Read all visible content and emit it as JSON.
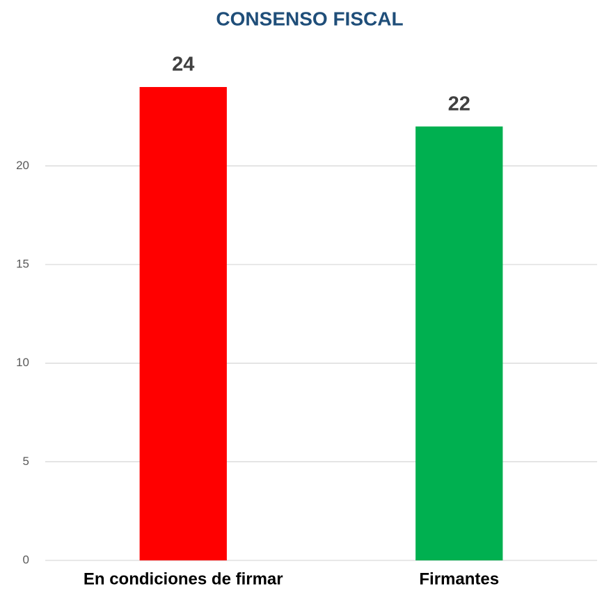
{
  "chart_data": {
    "type": "bar",
    "title": "CONSENSO FISCAL",
    "categories": [
      "En condiciones de firmar",
      "Firmantes"
    ],
    "values": [
      24,
      22
    ],
    "colors": [
      "#ff0000",
      "#00b050"
    ],
    "ylim": [
      0,
      24
    ],
    "yticks": [
      0,
      5,
      10,
      15,
      20
    ],
    "grid": true
  }
}
